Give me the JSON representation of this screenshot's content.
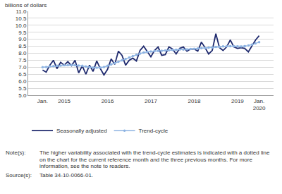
{
  "chart_data": {
    "type": "line",
    "y_label": "billions of dollars",
    "categories": [
      "Jan.",
      null,
      null,
      null,
      null,
      null,
      "2015",
      null,
      null,
      null,
      null,
      null,
      null,
      null,
      null,
      null,
      null,
      null,
      "2016",
      null,
      null,
      null,
      null,
      null,
      null,
      null,
      null,
      null,
      null,
      null,
      "2017",
      null,
      null,
      null,
      null,
      null,
      null,
      null,
      null,
      null,
      null,
      null,
      "2018",
      null,
      null,
      null,
      null,
      null,
      null,
      null,
      null,
      null,
      null,
      null,
      "2019",
      null,
      null,
      null,
      null,
      null,
      "Jan.\n2020"
    ],
    "series": [
      {
        "name": "Seasonally adjusted",
        "color": "#1f2a6e",
        "values": [
          6.8,
          6.65,
          7.15,
          7.5,
          6.9,
          7.35,
          7.15,
          7.4,
          7.1,
          7.5,
          6.6,
          7.1,
          6.5,
          7.15,
          6.7,
          7.45,
          6.9,
          6.45,
          6.85,
          7.6,
          7.2,
          8.15,
          7.85,
          7.15,
          7.5,
          7.65,
          7.45,
          8.2,
          8.5,
          8.1,
          7.75,
          8.2,
          8.45,
          7.85,
          7.9,
          8.45,
          8.3,
          7.95,
          8.35,
          8.45,
          8.15,
          8.3,
          8.3,
          8.15,
          8.8,
          8.4,
          7.95,
          8.2,
          9.4,
          8.4,
          8.2,
          8.45,
          8.95,
          8.45,
          8.35,
          8.4,
          8.35,
          8.1,
          8.5,
          8.95,
          9.25
        ]
      },
      {
        "name": "Trend-cycle",
        "color": "#8db3e2",
        "marker": "circle",
        "values": [
          7.0,
          7.02,
          7.05,
          7.08,
          7.1,
          7.12,
          7.14,
          7.15,
          7.15,
          7.14,
          7.12,
          7.1,
          7.05,
          7.0,
          6.98,
          6.97,
          6.98,
          7.02,
          7.1,
          7.2,
          7.3,
          7.4,
          7.5,
          7.6,
          7.7,
          7.8,
          7.9,
          7.98,
          8.05,
          8.1,
          8.13,
          8.15,
          8.17,
          8.18,
          8.2,
          8.22,
          8.24,
          8.25,
          8.26,
          8.27,
          8.28,
          8.3,
          8.32,
          8.34,
          8.36,
          8.38,
          8.4,
          8.42,
          8.45,
          8.47,
          8.49,
          8.5,
          8.51,
          8.5,
          8.49,
          8.48,
          8.5,
          null,
          null,
          null,
          null
        ]
      },
      {
        "color": "#8db3e2",
        "marker": "circle",
        "line_style": "dot",
        "values": [
          null,
          null,
          null,
          null,
          null,
          null,
          null,
          null,
          null,
          null,
          null,
          null,
          null,
          null,
          null,
          null,
          null,
          null,
          null,
          null,
          null,
          null,
          null,
          null,
          null,
          null,
          null,
          null,
          null,
          null,
          null,
          null,
          null,
          null,
          null,
          null,
          null,
          null,
          null,
          null,
          null,
          null,
          null,
          null,
          null,
          null,
          null,
          null,
          null,
          null,
          null,
          null,
          null,
          null,
          null,
          null,
          8.5,
          8.55,
          8.62,
          8.7,
          8.8
        ]
      }
    ],
    "ylim": [
      5,
      11
    ],
    "yticks": [
      {
        "value": 5,
        "label": "5.0"
      },
      {
        "value": 5.5,
        "label": "5.5"
      },
      {
        "value": 6,
        "label": "6.0"
      },
      {
        "value": 6.5,
        "label": "6.5"
      },
      {
        "value": 7,
        "label": "7.0"
      },
      {
        "value": 7.5,
        "label": "7.5"
      },
      {
        "value": 8,
        "label": "8.0"
      },
      {
        "value": 8.5,
        "label": "8.5"
      },
      {
        "value": 9,
        "label": "9.0"
      },
      {
        "value": 9.5,
        "label": "9.5"
      },
      {
        "value": 10,
        "label": "10.0"
      },
      {
        "value": 10.5,
        "label": "10.5"
      },
      {
        "value": 11,
        "label": "11.0"
      }
    ],
    "grid": true,
    "legend": "bottom-left",
    "notes": [
      {
        "label": "Note(s):",
        "text": "The higher variability associated with the trend-cycle estimates is indicated with a dotted line on the chart for the current reference month and the three previous months. For more information, see the note to readers."
      },
      {
        "label": "Source(s):",
        "text": "Table 34-10-0066-01."
      }
    ]
  }
}
